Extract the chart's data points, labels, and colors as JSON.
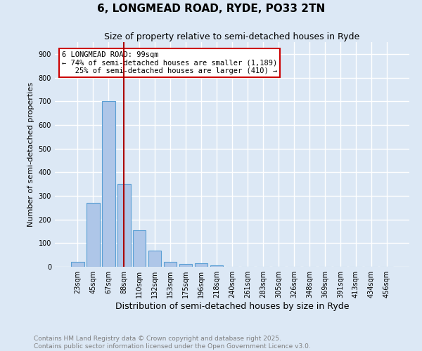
{
  "title": "6, LONGMEAD ROAD, RYDE, PO33 2TN",
  "subtitle": "Size of property relative to semi-detached houses in Ryde",
  "xlabel": "Distribution of semi-detached houses by size in Ryde",
  "ylabel": "Number of semi-detached properties",
  "categories": [
    "23sqm",
    "45sqm",
    "67sqm",
    "88sqm",
    "110sqm",
    "132sqm",
    "153sqm",
    "175sqm",
    "196sqm",
    "218sqm",
    "240sqm",
    "261sqm",
    "283sqm",
    "305sqm",
    "326sqm",
    "348sqm",
    "369sqm",
    "391sqm",
    "413sqm",
    "434sqm",
    "456sqm"
  ],
  "values": [
    20,
    270,
    700,
    350,
    155,
    68,
    22,
    12,
    15,
    5,
    0,
    0,
    0,
    0,
    0,
    0,
    0,
    0,
    0,
    0,
    0
  ],
  "bar_color": "#aec6e8",
  "bar_edge_color": "#5a9fd4",
  "background_color": "#dce8f5",
  "grid_color": "#ffffff",
  "vline_color": "#aa0000",
  "vline_pos": 3.0,
  "annotation_text": "6 LONGMEAD ROAD: 99sqm\n← 74% of semi-detached houses are smaller (1,189)\n   25% of semi-detached houses are larger (410) →",
  "annotation_box_color": "#ffffff",
  "annotation_box_edge_color": "#cc0000",
  "footer_text": "Contains HM Land Registry data © Crown copyright and database right 2025.\nContains public sector information licensed under the Open Government Licence v3.0.",
  "ylim": [
    0,
    950
  ],
  "yticks": [
    0,
    100,
    200,
    300,
    400,
    500,
    600,
    700,
    800,
    900
  ],
  "title_fontsize": 11,
  "subtitle_fontsize": 9,
  "xlabel_fontsize": 9,
  "ylabel_fontsize": 8,
  "tick_fontsize": 7,
  "footer_fontsize": 6.5,
  "annotation_fontsize": 7.5
}
